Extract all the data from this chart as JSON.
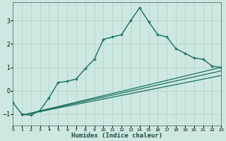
{
  "xlabel": "Humidex (Indice chaleur)",
  "background_color": "#cce8e0",
  "grid_color": "#b8d8d0",
  "line_color": "#1a6e60",
  "xlim": [
    0,
    23
  ],
  "ylim": [
    -1.5,
    3.8
  ],
  "yticks": [
    -1,
    0,
    1,
    2,
    3
  ],
  "xticks": [
    0,
    1,
    2,
    3,
    4,
    5,
    6,
    7,
    8,
    9,
    10,
    11,
    12,
    13,
    14,
    15,
    16,
    17,
    18,
    19,
    20,
    21,
    22,
    23
  ],
  "series_main": {
    "x": [
      0,
      1,
      2,
      3,
      4,
      5,
      6,
      7,
      8,
      9,
      10,
      11,
      12,
      13,
      14,
      15,
      16,
      17,
      18,
      19,
      20,
      21,
      22,
      23
    ],
    "y": [
      -0.5,
      -1.0,
      -1.05,
      -0.85,
      -0.3,
      0.35,
      0.4,
      0.5,
      0.95,
      1.35,
      2.2,
      2.3,
      2.4,
      3.0,
      3.55,
      2.95,
      2.4,
      2.3,
      1.8,
      1.6,
      1.4,
      1.35,
      1.05,
      1.0
    ]
  },
  "series_lines": [
    {
      "x0": 1,
      "y0": -1.05,
      "x1": 23,
      "y1": 1.0
    },
    {
      "x0": 1,
      "y0": -1.05,
      "x1": 23,
      "y1": 0.85
    },
    {
      "x0": 1,
      "y0": -1.05,
      "x1": 23,
      "y1": 0.65
    }
  ]
}
